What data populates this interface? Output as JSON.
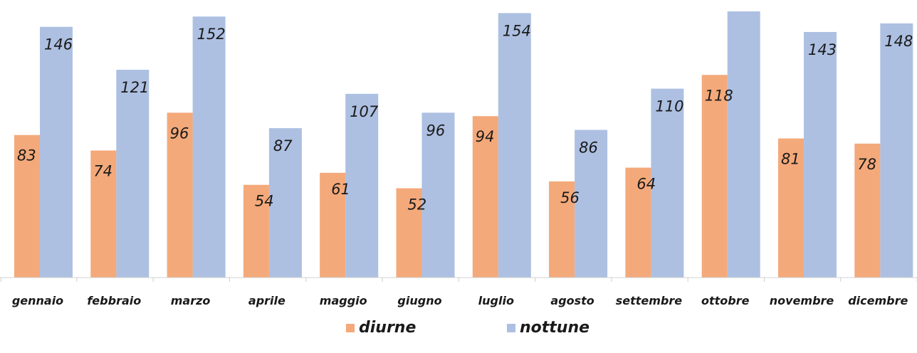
{
  "chart_data": {
    "type": "bar",
    "title": "",
    "xlabel": "",
    "ylabel": "",
    "ylim": [
      0,
      160
    ],
    "grid": false,
    "legend_placement": "bottom",
    "categories": [
      "gennaio",
      "febbraio",
      "marzo",
      "aprile",
      "maggio",
      "giugno",
      "luglio",
      "agosto",
      "settembre",
      "ottobre",
      "novembre",
      "dicembre"
    ],
    "series": [
      {
        "name": "diurne",
        "color": "#f4a97a",
        "values": [
          83,
          74,
          96,
          54,
          61,
          52,
          94,
          56,
          64,
          118,
          81,
          78
        ],
        "labels": [
          "83",
          "74",
          "96",
          "54",
          "61",
          "52",
          "94",
          "56",
          "64",
          "118",
          "81",
          "78"
        ]
      },
      {
        "name": "nottune",
        "color": "#adc0e2",
        "values": [
          146,
          121,
          152,
          87,
          107,
          96,
          154,
          86,
          110,
          155,
          143,
          148
        ],
        "labels": [
          "146",
          "121",
          "152",
          "87",
          "107",
          "96",
          "154",
          "86",
          "110",
          "",
          "143",
          "148"
        ]
      }
    ]
  }
}
